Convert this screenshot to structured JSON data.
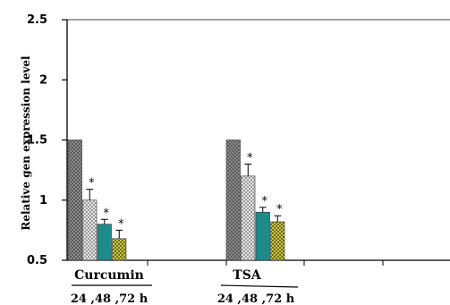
{
  "chart_data": {
    "type": "bar",
    "title": "",
    "ylabel": "Relative gen expression level",
    "xlabel": "",
    "ylim": [
      0.5,
      2.5
    ],
    "yticks": [
      0.5,
      1,
      1.5,
      2,
      2.5
    ],
    "ytick_labels": [
      "0.5",
      "1",
      "1.5",
      "2",
      "2.5"
    ],
    "grid": false,
    "legend": "none",
    "groups": [
      {
        "label": "Curcumin",
        "sublabel": "24 ,48 ,72 h",
        "bars": [
          {
            "value": 1.5,
            "error": 0,
            "significant": false,
            "color": "#7f7f7f",
            "pattern": "dots-dark"
          },
          {
            "value": 1.0,
            "error": 0.09,
            "significant": true,
            "color": "#c8c8c8",
            "pattern": "checker"
          },
          {
            "value": 0.8,
            "error": 0.04,
            "significant": true,
            "color": "#1f8a8a",
            "pattern": "solid"
          },
          {
            "value": 0.68,
            "error": 0.07,
            "significant": true,
            "color": "#b8b63a",
            "pattern": "dots-olive"
          }
        ]
      },
      {
        "label": "TSA",
        "sublabel": "24 ,48 ,72 h",
        "bars": [
          {
            "value": 1.5,
            "error": 0,
            "significant": false,
            "color": "#7f7f7f",
            "pattern": "dots-dark"
          },
          {
            "value": 1.2,
            "error": 0.1,
            "significant": true,
            "color": "#c8c8c8",
            "pattern": "checker"
          },
          {
            "value": 0.9,
            "error": 0.04,
            "significant": true,
            "color": "#1f8a8a",
            "pattern": "solid"
          },
          {
            "value": 0.82,
            "error": 0.05,
            "significant": true,
            "color": "#b8b63a",
            "pattern": "dots-olive"
          }
        ]
      }
    ],
    "significance_marker": "*"
  }
}
